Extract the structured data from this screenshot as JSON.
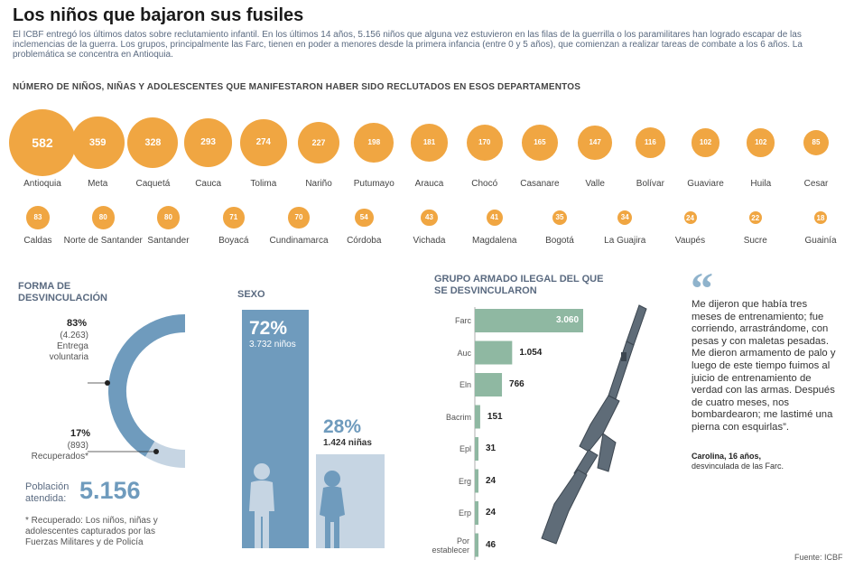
{
  "title": "Los niños que bajaron sus fusiles",
  "intro": "El ICBF entregó los últimos datos sobre reclutamiento infantil. En los últimos 14 años, 5.156 niños que alguna vez estuvieron en las filas de la guerrilla o los paramilitares han logrado escapar de las inclemencias de la guerra. Los grupos, principalmente las Farc, tienen en poder a menores desde la primera infancia (entre 0 y 5 años), que comienzan a realizar tareas de combate a los 6 años. La problemática se concentra en Antioquia.",
  "colors": {
    "orange": "#f0a642",
    "blue": "#6f9bbd",
    "lightblue": "#c6d5e3",
    "green": "#8fb8a2",
    "text": "#5a6a80"
  },
  "departments": {
    "heading": "NÚMERO DE NIÑOS, NIÑAS Y ADOLESCENTES QUE MANIFESTARON HABER SIDO RECLUTADOS EN ESOS DEPARTAMENTOS",
    "row1": [
      {
        "name": "Antioquia",
        "value": "582"
      },
      {
        "name": "Meta",
        "value": "359"
      },
      {
        "name": "Caquetá",
        "value": "328"
      },
      {
        "name": "Cauca",
        "value": "293"
      },
      {
        "name": "Tolima",
        "value": "274"
      },
      {
        "name": "Nariño",
        "value": "227"
      },
      {
        "name": "Putumayo",
        "value": "198"
      },
      {
        "name": "Arauca",
        "value": "181"
      },
      {
        "name": "Chocó",
        "value": "170"
      },
      {
        "name": "Casanare",
        "value": "165"
      },
      {
        "name": "Valle",
        "value": "147"
      },
      {
        "name": "Bolívar",
        "value": "116"
      },
      {
        "name": "Guaviare",
        "value": "102"
      },
      {
        "name": "Huila",
        "value": "102"
      },
      {
        "name": "Cesar",
        "value": "85"
      }
    ],
    "row2": [
      {
        "name": "Caldas",
        "value": "83"
      },
      {
        "name": "Norte de Santander",
        "value": "80"
      },
      {
        "name": "Santander",
        "value": "80"
      },
      {
        "name": "Boyacá",
        "value": "71"
      },
      {
        "name": "Cundinamarca",
        "value": "70"
      },
      {
        "name": "Córdoba",
        "value": "54"
      },
      {
        "name": "Vichada",
        "value": "43"
      },
      {
        "name": "Magdalena",
        "value": "41"
      },
      {
        "name": "Bogotá",
        "value": "35"
      },
      {
        "name": "La Guajira",
        "value": "34"
      },
      {
        "name": "Vaupés",
        "value": "24"
      },
      {
        "name": "Sucre",
        "value": "22"
      },
      {
        "name": "Guainía",
        "value": "18"
      }
    ]
  },
  "forma": {
    "heading": "FORMA DE DESVINCULACIÓN",
    "voluntaria": {
      "pct": "83%",
      "count": "(4.263)",
      "label": "Entrega voluntaria"
    },
    "recuperados": {
      "pct": "17%",
      "count": "(893)",
      "label": "Recuperados*"
    },
    "poblacion_label": "Población atendida:",
    "poblacion_value": "5.156",
    "footnote": "* Recuperado: Los niños, niñas y adolescentes capturados por las Fuerzas Militares y de Policía"
  },
  "sexo": {
    "heading": "SEXO",
    "ninos": {
      "pct": "72%",
      "label": "3.732 niños"
    },
    "ninas": {
      "pct": "28%",
      "label": "1.424 niñas"
    }
  },
  "grupo": {
    "heading": "GRUPO ARMADO ILEGAL DEL QUE SE DESVINCULARON"
  },
  "chart_data": [
    {
      "type": "bar",
      "orientation": "horizontal",
      "title": "GRUPO ARMADO ILEGAL DEL QUE SE DESVINCULARON",
      "categories": [
        "Farc",
        "Auc",
        "Eln",
        "Bacrim",
        "Epl",
        "Erg",
        "Erp",
        "Por establecer"
      ],
      "values": [
        3060,
        1054,
        766,
        151,
        31,
        24,
        24,
        46
      ],
      "value_labels": [
        "3.060",
        "1.054",
        "766",
        "151",
        "31",
        "24",
        "24",
        "46"
      ]
    },
    {
      "type": "pie",
      "title": "FORMA DE DESVINCULACIÓN",
      "labels": [
        "Entrega voluntaria",
        "Recuperados*"
      ],
      "values": [
        4263,
        893
      ],
      "percent": [
        83,
        17
      ]
    },
    {
      "type": "bar",
      "title": "SEXO",
      "categories": [
        "niños",
        "niñas"
      ],
      "values": [
        3732,
        1424
      ],
      "percent": [
        72,
        28
      ]
    }
  ],
  "quote": {
    "mark": "“",
    "text": "Me dijeron que había tres meses de entrenamiento; fue corriendo, arrastrándome, con pesas y con maletas pesadas. Me dieron armamento de palo y luego de este tiempo fuimos al juicio de entrenamiento de verdad con las armas. Después de cuatro meses, nos bombardearon; me lastimé una pierna con esquirlas”.",
    "author": "Carolina, 16 años,",
    "author_sub": "desvinculada de las Farc."
  },
  "source": "Fuente: ICBF"
}
